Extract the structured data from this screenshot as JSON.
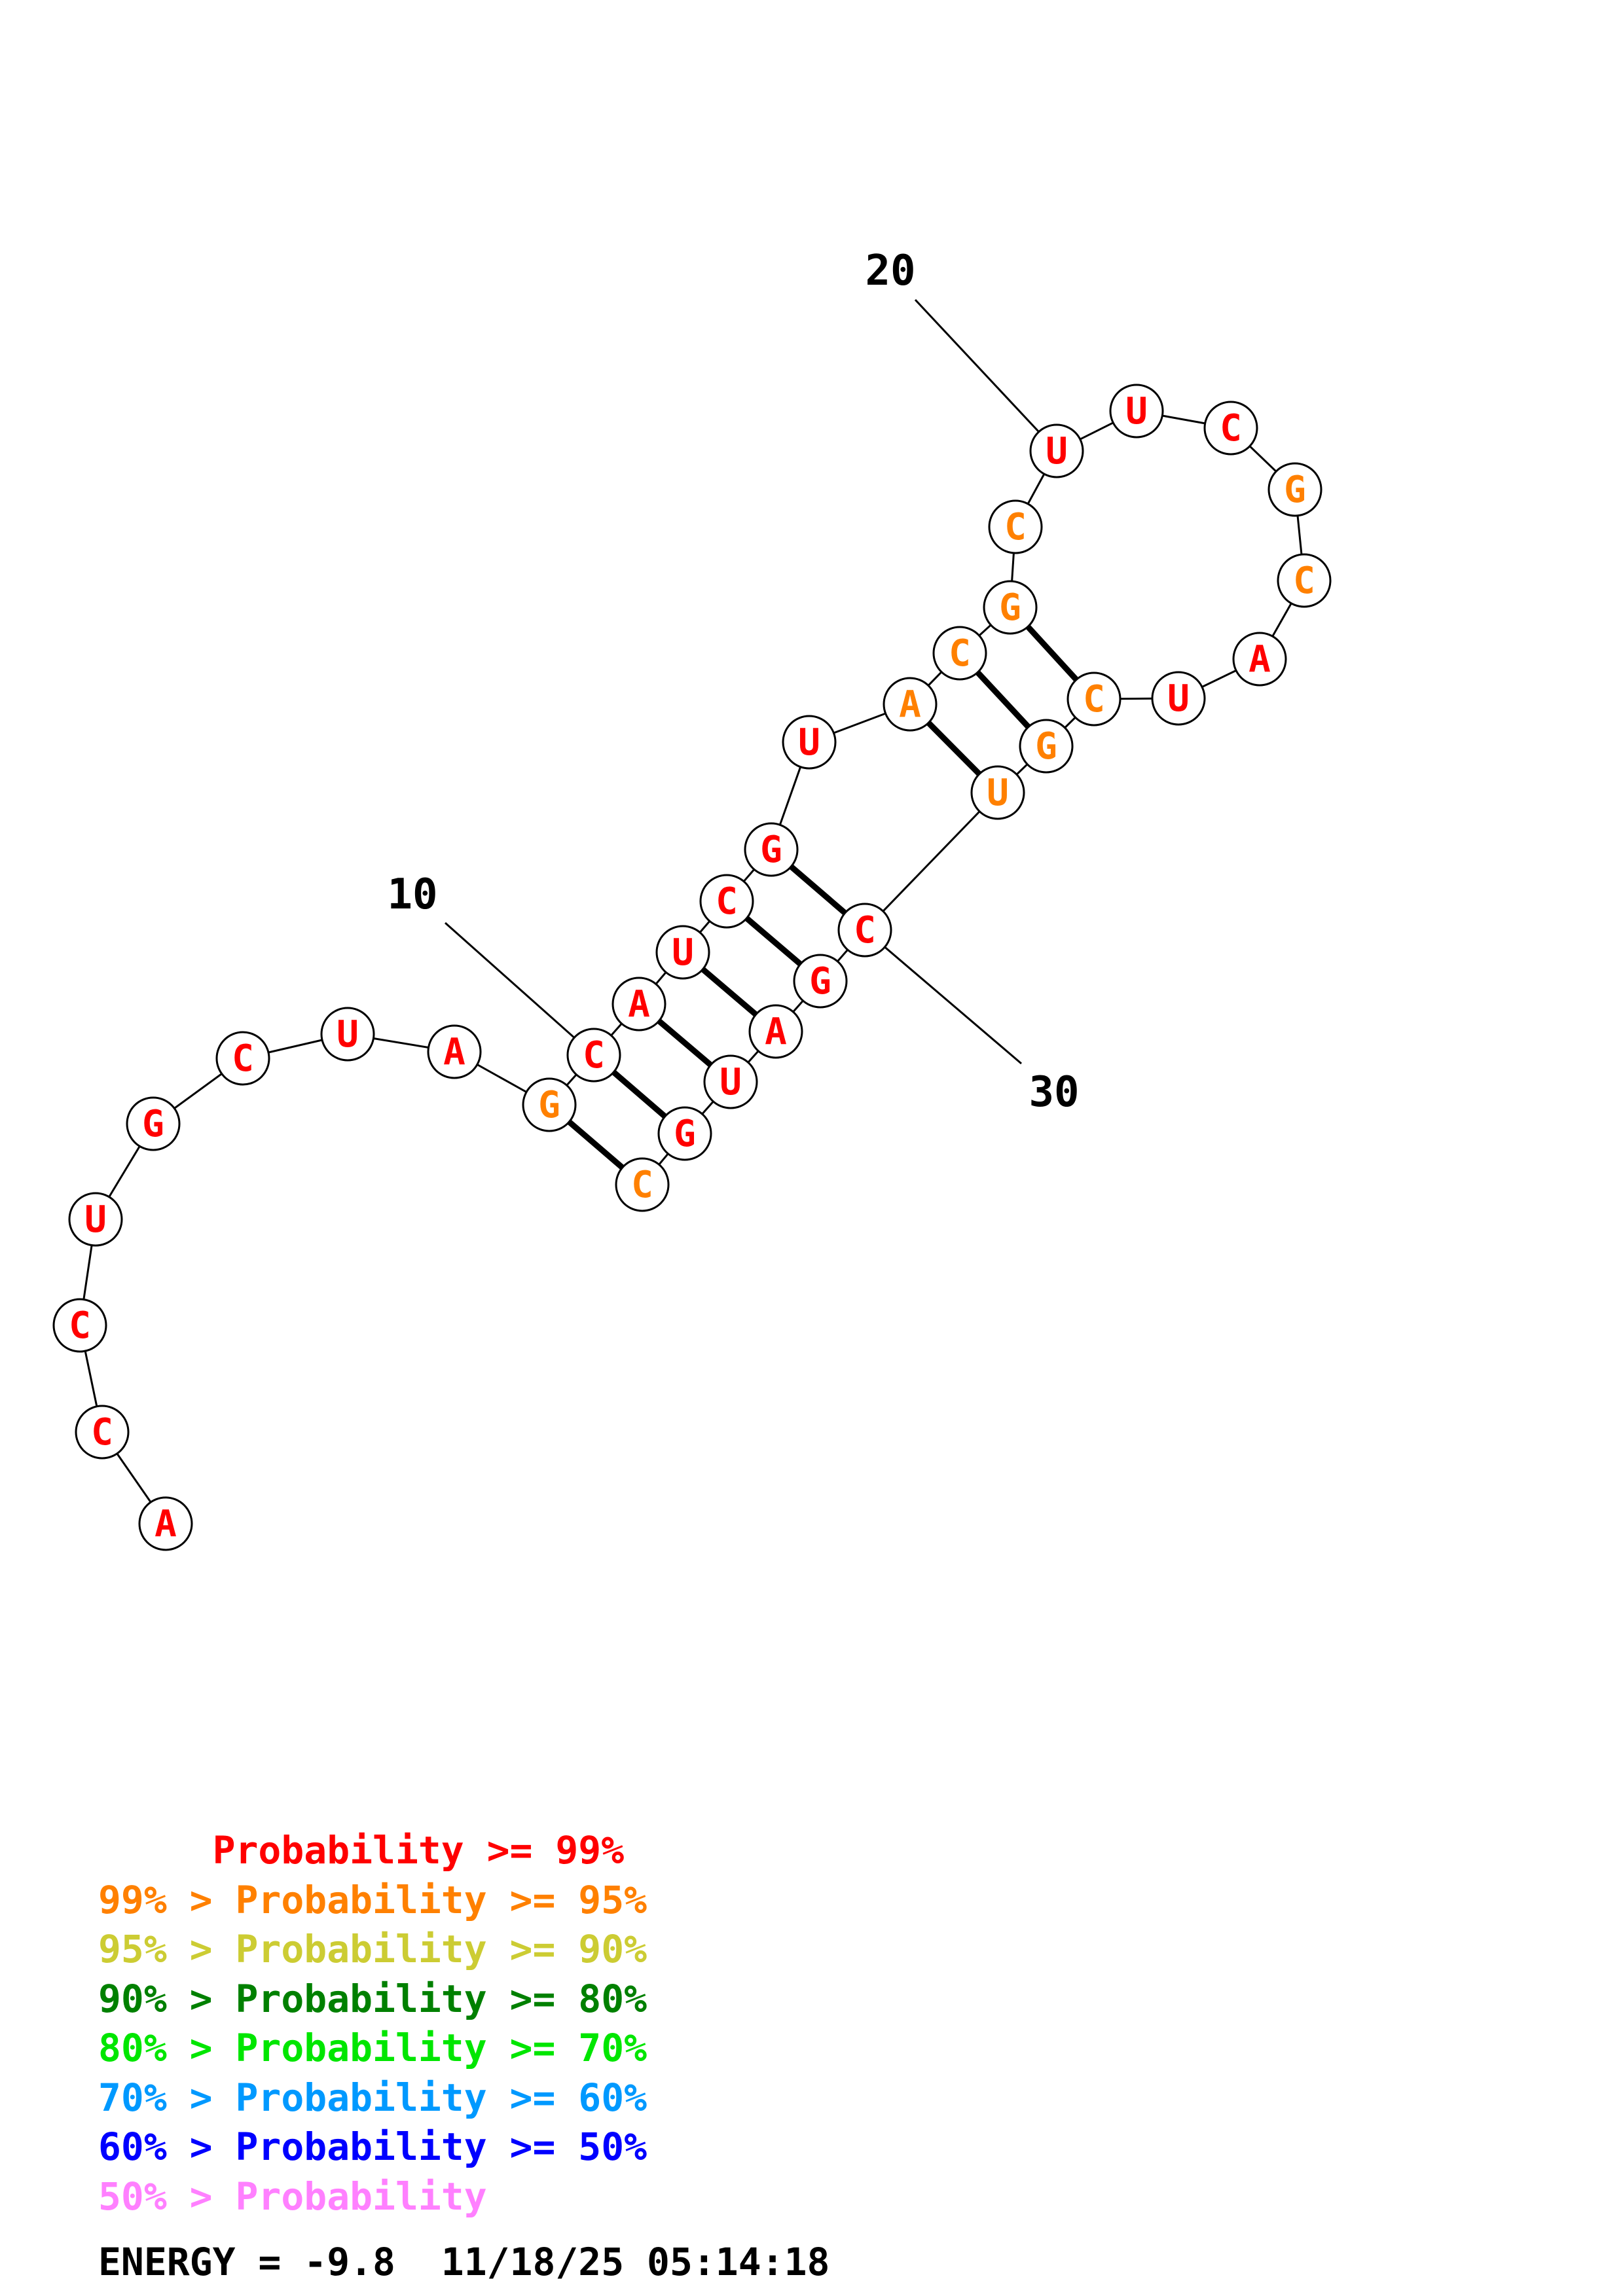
{
  "palette": {
    "backbone": "#000000",
    "node_fill": "#ffffff",
    "node_stroke": "#000000",
    "prob_ge_99": "#ff0000",
    "prob_95_99": "#ff8000",
    "prob_90_95": "#cccc33",
    "prob_80_90": "#008000",
    "prob_70_80": "#00e600",
    "prob_60_70": "#0099ff",
    "prob_50_60": "#0000ff",
    "prob_lt_50": "#ff80ff"
  },
  "sequence": [
    {
      "base": "A",
      "color": "#ff0000",
      "pos": 1
    },
    {
      "base": "C",
      "color": "#ff0000",
      "pos": 2
    },
    {
      "base": "C",
      "color": "#ff0000",
      "pos": 3
    },
    {
      "base": "U",
      "color": "#ff0000",
      "pos": 4
    },
    {
      "base": "G",
      "color": "#ff0000",
      "pos": 5
    },
    {
      "base": "C",
      "color": "#ff0000",
      "pos": 6
    },
    {
      "base": "U",
      "color": "#ff0000",
      "pos": 7
    },
    {
      "base": "A",
      "color": "#ff0000",
      "pos": 8
    },
    {
      "base": "G",
      "color": "#ff8000",
      "pos": 9
    },
    {
      "base": "C",
      "color": "#ff0000",
      "pos": 10
    },
    {
      "base": "A",
      "color": "#ff0000",
      "pos": 11
    },
    {
      "base": "U",
      "color": "#ff0000",
      "pos": 12
    },
    {
      "base": "C",
      "color": "#ff0000",
      "pos": 13
    },
    {
      "base": "G",
      "color": "#ff0000",
      "pos": 14
    },
    {
      "base": "U",
      "color": "#ff0000",
      "pos": 15
    },
    {
      "base": "A",
      "color": "#ff8000",
      "pos": 16
    },
    {
      "base": "C",
      "color": "#ff8000",
      "pos": 17
    },
    {
      "base": "G",
      "color": "#ff8000",
      "pos": 18
    },
    {
      "base": "C",
      "color": "#ff8000",
      "pos": 19
    },
    {
      "base": "U",
      "color": "#ff0000",
      "pos": 20
    },
    {
      "base": "U",
      "color": "#ff0000",
      "pos": 21
    },
    {
      "base": "C",
      "color": "#ff0000",
      "pos": 22
    },
    {
      "base": "G",
      "color": "#ff8000",
      "pos": 23
    },
    {
      "base": "C",
      "color": "#ff8000",
      "pos": 24
    },
    {
      "base": "A",
      "color": "#ff0000",
      "pos": 25
    },
    {
      "base": "U",
      "color": "#ff0000",
      "pos": 26
    },
    {
      "base": "C",
      "color": "#ff8000",
      "pos": 27
    },
    {
      "base": "G",
      "color": "#ff8000",
      "pos": 28
    },
    {
      "base": "U",
      "color": "#ff8000",
      "pos": 29
    },
    {
      "base": "C",
      "color": "#ff0000",
      "pos": 30
    },
    {
      "base": "G",
      "color": "#ff0000",
      "pos": 31
    },
    {
      "base": "A",
      "color": "#ff0000",
      "pos": 32
    },
    {
      "base": "U",
      "color": "#ff0000",
      "pos": 33
    },
    {
      "base": "G",
      "color": "#ff0000",
      "pos": 34
    },
    {
      "base": "C",
      "color": "#ff8000",
      "pos": 35
    }
  ],
  "base_pairs": [
    [
      9,
      35
    ],
    [
      10,
      34
    ],
    [
      11,
      33
    ],
    [
      12,
      32
    ],
    [
      13,
      31
    ],
    [
      14,
      30
    ],
    [
      16,
      29
    ],
    [
      17,
      28
    ],
    [
      18,
      27
    ]
  ],
  "position_labels": [
    {
      "text": "10",
      "pos": 10
    },
    {
      "text": "20",
      "pos": 20
    },
    {
      "text": "30",
      "pos": 30
    }
  ],
  "legend": [
    {
      "text": "     Probability >= 99%",
      "color": "#ff0000"
    },
    {
      "text": "99% > Probability >= 95%",
      "color": "#ff8000"
    },
    {
      "text": "95% > Probability >= 90%",
      "color": "#cccc33"
    },
    {
      "text": "90% > Probability >= 80%",
      "color": "#008000"
    },
    {
      "text": "80% > Probability >= 70%",
      "color": "#00e600"
    },
    {
      "text": "70% > Probability >= 60%",
      "color": "#0099ff"
    },
    {
      "text": "60% > Probability >= 50%",
      "color": "#0000ff"
    },
    {
      "text": "50% > Probability",
      "color": "#ff80ff"
    }
  ],
  "energy_text": "ENERGY = -9.8  11/18/25 05:14:18"
}
